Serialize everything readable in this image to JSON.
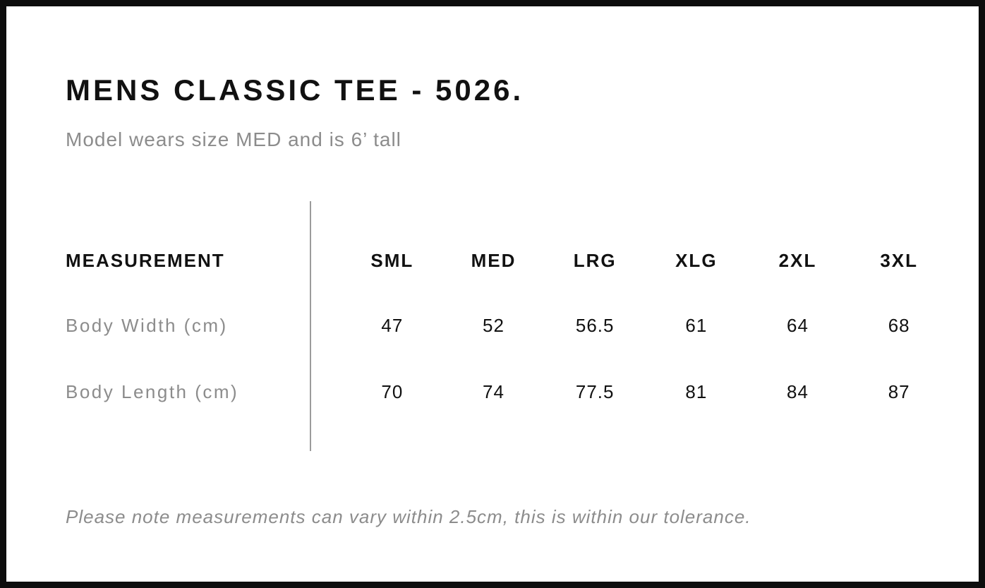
{
  "colors": {
    "background": "#ffffff",
    "frame_border": "#0d0d0d",
    "text_primary": "#111111",
    "text_secondary": "#8c8c8c",
    "divider": "#9b9b9b"
  },
  "header": {
    "title": "MENS CLASSIC TEE - 5026.",
    "subtitle": "Model wears size MED and is 6’ tall"
  },
  "size_chart": {
    "measurement_header": "MEASUREMENT",
    "columns": [
      "SML",
      "MED",
      "LRG",
      "XLG",
      "2XL",
      "3XL"
    ],
    "rows": [
      {
        "label": "Body Width (cm)",
        "values": [
          "47",
          "52",
          "56.5",
          "61",
          "64",
          "68"
        ]
      },
      {
        "label": "Body Length (cm)",
        "values": [
          "70",
          "74",
          "77.5",
          "81",
          "84",
          "87"
        ]
      }
    ]
  },
  "footnote": "Please note measurements can vary within 2.5cm, this is within our tolerance."
}
